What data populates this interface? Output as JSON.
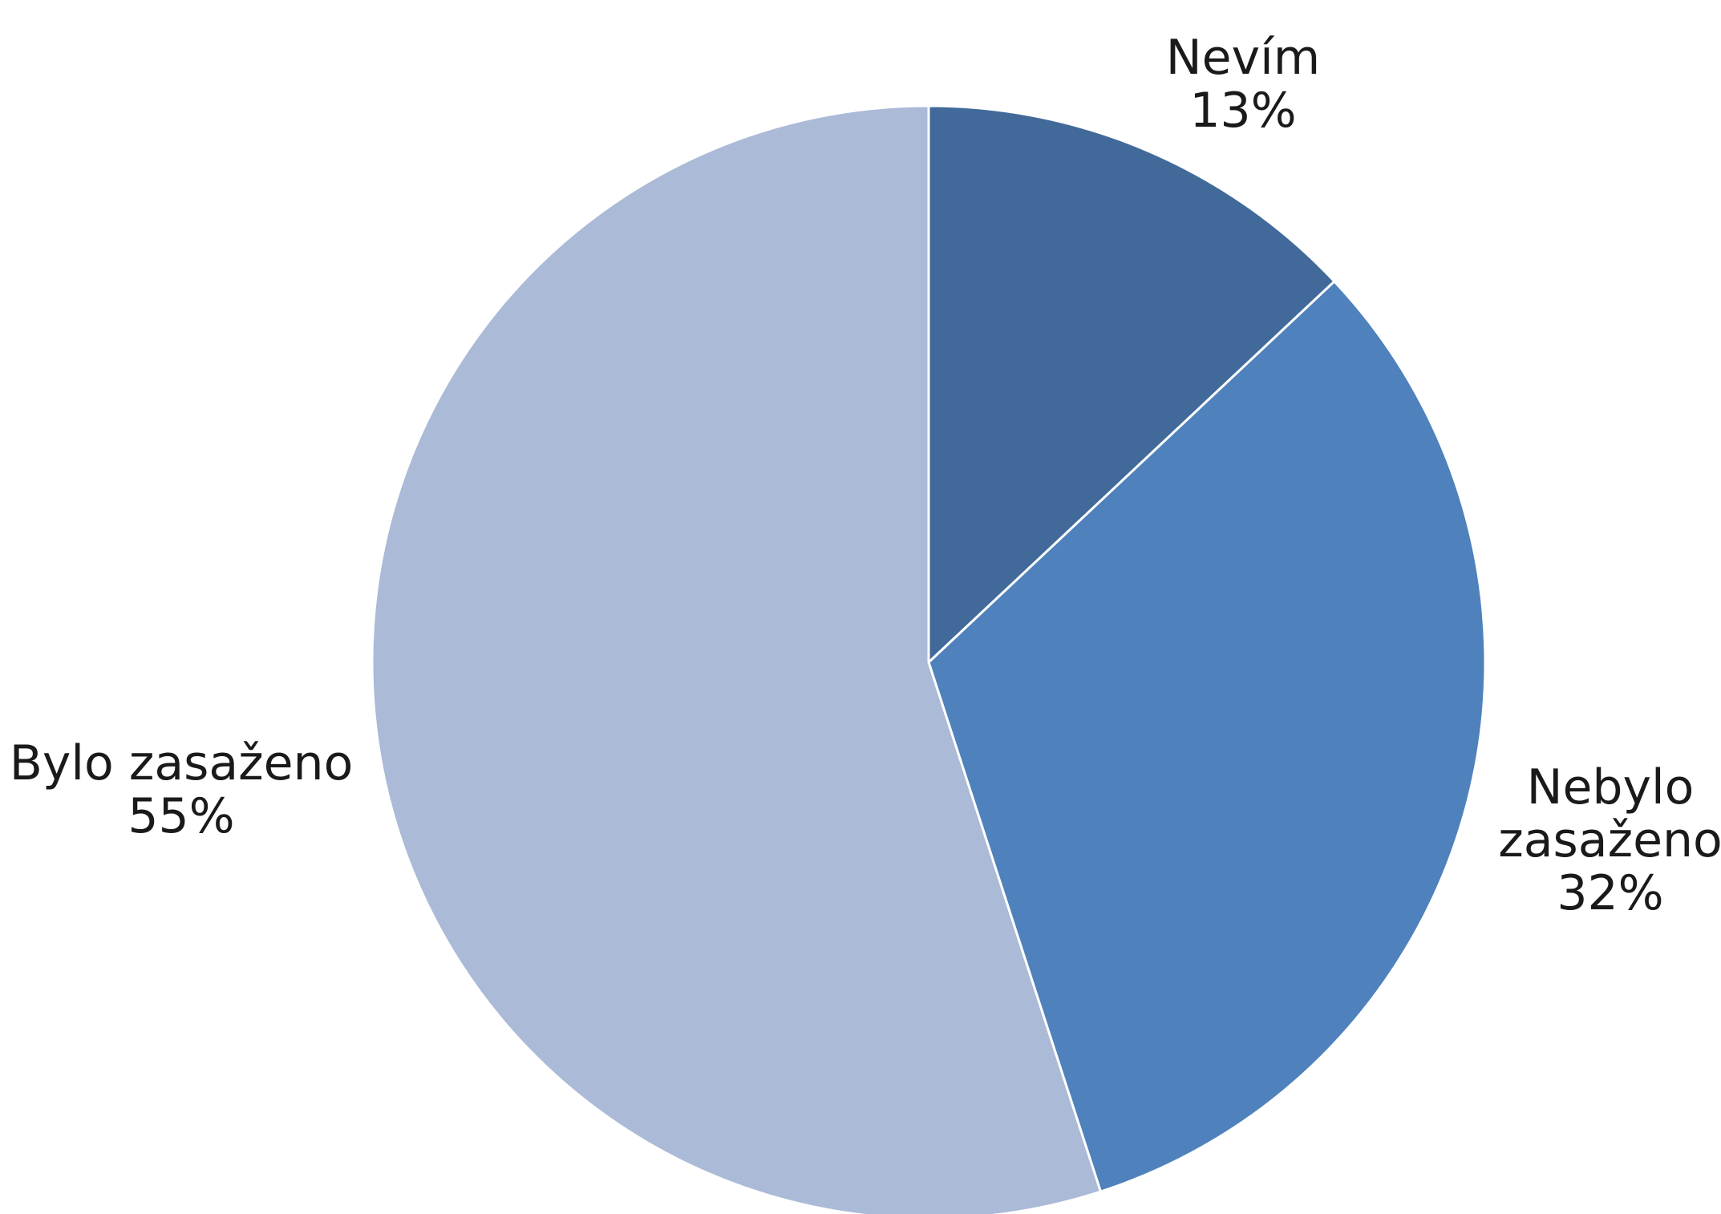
{
  "chart_data": {
    "type": "pie",
    "title": "",
    "slices": [
      {
        "label_lines": [
          "Nevím"
        ],
        "value": 13,
        "value_label": "13%",
        "color": "#416a9b"
      },
      {
        "label_lines": [
          "Nebylo",
          "zasaženo"
        ],
        "value": 32,
        "value_label": "32%",
        "color": "#4f81bc"
      },
      {
        "label_lines": [
          "Bylo zasaženo"
        ],
        "value": 55,
        "value_label": "55%",
        "color": "#aabad7"
      }
    ],
    "start_angle_deg": 0,
    "direction": "clockwise",
    "separator_color": "#ffffff",
    "legend": "none",
    "data_labels": "outside"
  }
}
